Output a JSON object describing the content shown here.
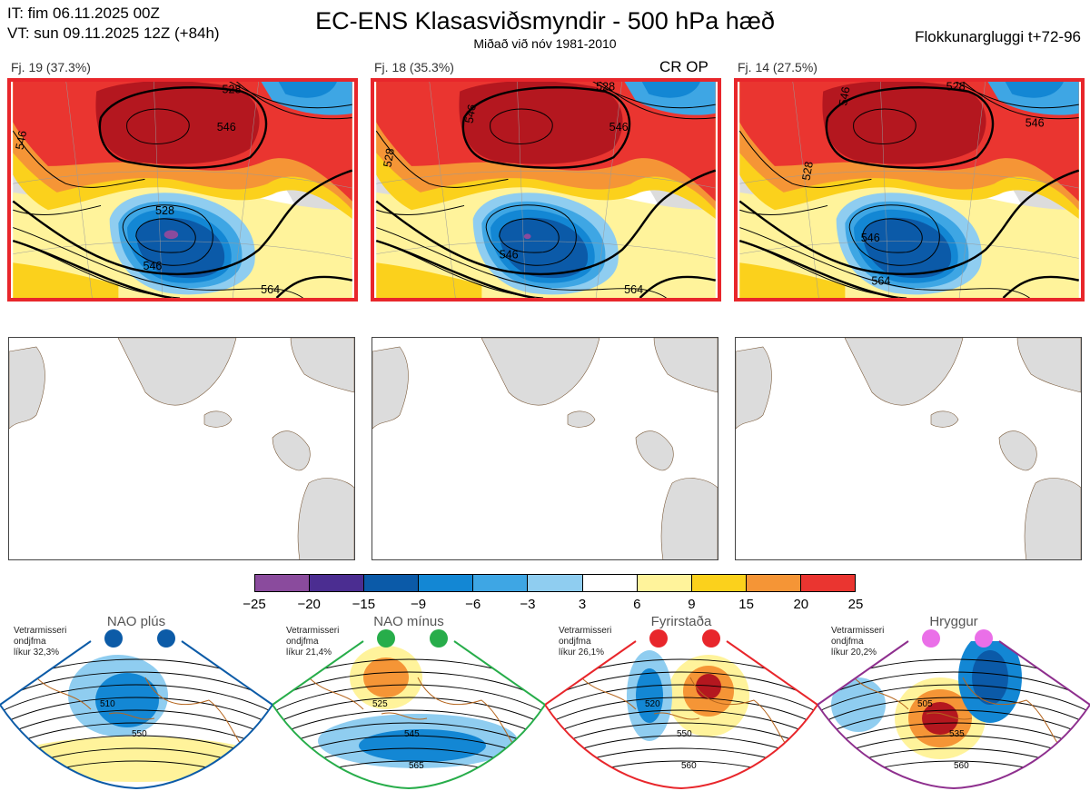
{
  "header": {
    "it_line": "IT: fim 06.11.2025 00Z",
    "vt_line": "VT: sun 09.11.2025 12Z  (+84h)",
    "title": "EC-ENS Klasasviðsmyndir - 500 hPa hæð",
    "subtitle": "Miðað við nóv 1981-2010",
    "window": "Flokkunargluggi t+72-96"
  },
  "panels": [
    {
      "label": "Fj. 19 (37.3%)",
      "contours": [
        "528",
        "546",
        "546",
        "528",
        "546",
        "564"
      ]
    },
    {
      "label": "Fj. 18 (35.3%)",
      "tag": "CR OP",
      "contours": [
        "546",
        "528",
        "546",
        "528",
        "546",
        "564"
      ]
    },
    {
      "label": "Fj. 14 (27.5%)",
      "contours": [
        "546",
        "528",
        "546",
        "528",
        "546",
        "564"
      ]
    }
  ],
  "colorbar": {
    "ticks": [
      "−25",
      "−20",
      "−15",
      "−9",
      "−6",
      "−3",
      "3",
      "6",
      "9",
      "15",
      "20",
      "25"
    ],
    "colors": [
      "#8a4b9d",
      "#4b2d91",
      "#0b5aa8",
      "#1387d4",
      "#3ea6e4",
      "#8fcdf0",
      "#ffffff",
      "#fff39b",
      "#fbd11c",
      "#f59536",
      "#ea3530",
      "#b4171f"
    ]
  },
  "regimes": [
    {
      "title": "NAO plús",
      "note1": "Vetrarmisseri",
      "note2": "ondjfma",
      "note3": "líkur 32,3%",
      "dot_color": "#0c5ba7",
      "frame_color": "#0c5ba7",
      "contours": [
        "510",
        "550"
      ]
    },
    {
      "title": "NAO mínus",
      "note1": "Vetrarmisseri",
      "note2": "ondjfma",
      "note3": "líkur 21,4%",
      "dot_color": "#27ad4a",
      "frame_color": "#27ad4a",
      "contours": [
        "525",
        "545",
        "565"
      ]
    },
    {
      "title": "Fyrirstaða",
      "note1": "Vetrarmisseri",
      "note2": "ondjfma",
      "note3": "líkur 26,1%",
      "dot_color": "#e8262b",
      "frame_color": "#e8262b",
      "contours": [
        "520",
        "550",
        "560"
      ]
    },
    {
      "title": "Hryggur",
      "note1": "Vetrarmisseri",
      "note2": "ondjfma",
      "note3": "líkur 20,2%",
      "dot_color": "#ea6fe8",
      "frame_color": "#8e2f8e",
      "contours": [
        "505",
        "535",
        "560"
      ]
    }
  ]
}
